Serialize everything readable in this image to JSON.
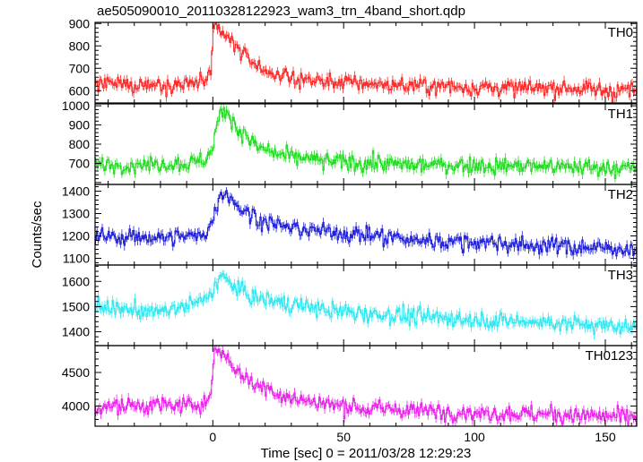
{
  "figure": {
    "title": "ae505090010_20110328122923_wam3_trn_4band_short.qdp",
    "ylabel": "Counts/sec",
    "xlabel": "Time [sec] 0 = 2011/03/28 12:29:23"
  },
  "chart_data": {
    "type": "line",
    "x_range": [
      -45,
      162
    ],
    "x_ticks": [
      0,
      50,
      100,
      150
    ],
    "bin_width_sec": 0.5,
    "panels": [
      {
        "name": "TH0",
        "color": "#ff2a2a",
        "ylim": [
          545,
          905
        ],
        "y_ticks": [
          600,
          700,
          800,
          900
        ],
        "profile": {
          "x": [
            -45,
            -10,
            -3,
            -0.5,
            0,
            1,
            3,
            6,
            10,
            15,
            20,
            30,
            45,
            60,
            80,
            100,
            120,
            140,
            160
          ],
          "y": [
            625,
            630,
            640,
            655,
            860,
            895,
            860,
            830,
            780,
            730,
            690,
            655,
            640,
            630,
            620,
            615,
            610,
            608,
            600
          ]
        }
      },
      {
        "name": "TH1",
        "color": "#22dd22",
        "ylim": [
          590,
          1010
        ],
        "y_ticks": [
          700,
          800,
          900,
          1000
        ],
        "profile": {
          "x": [
            -45,
            -10,
            -3,
            0,
            2,
            4,
            7,
            10,
            15,
            20,
            30,
            45,
            60,
            80,
            100,
            120,
            140,
            160
          ],
          "y": [
            690,
            700,
            720,
            780,
            920,
            985,
            940,
            870,
            810,
            760,
            730,
            710,
            700,
            690,
            690,
            685,
            680,
            675
          ]
        }
      },
      {
        "name": "TH2",
        "color": "#2222dd",
        "ylim": [
          1070,
          1430
        ],
        "y_ticks": [
          1100,
          1200,
          1300,
          1400
        ],
        "profile": {
          "x": [
            -45,
            -10,
            -3,
            0,
            2,
            4,
            7,
            10,
            15,
            20,
            30,
            45,
            60,
            80,
            100,
            120,
            140,
            160
          ],
          "y": [
            1195,
            1195,
            1210,
            1260,
            1360,
            1395,
            1370,
            1330,
            1290,
            1260,
            1235,
            1220,
            1200,
            1180,
            1170,
            1160,
            1150,
            1140
          ]
        }
      },
      {
        "name": "TH3",
        "color": "#33e8f0",
        "ylim": [
          1345,
          1665
        ],
        "y_ticks": [
          1400,
          1500,
          1600
        ],
        "profile": {
          "x": [
            -45,
            -20,
            -10,
            -3,
            0,
            3,
            6,
            10,
            15,
            25,
            40,
            60,
            80,
            100,
            120,
            140,
            160
          ],
          "y": [
            1500,
            1480,
            1500,
            1530,
            1570,
            1620,
            1600,
            1570,
            1540,
            1520,
            1490,
            1470,
            1460,
            1450,
            1440,
            1430,
            1420
          ]
        }
      },
      {
        "name": "TH0123",
        "color": "#ee22ee",
        "ylim": [
          3700,
          4900
        ],
        "y_ticks": [
          4000,
          4500
        ],
        "profile": {
          "x": [
            -45,
            -10,
            -3,
            -0.5,
            0,
            1,
            3,
            6,
            10,
            15,
            20,
            30,
            45,
            60,
            80,
            100,
            120,
            140,
            160
          ],
          "y": [
            4000,
            4010,
            4060,
            4120,
            4650,
            4840,
            4800,
            4700,
            4500,
            4350,
            4250,
            4120,
            4020,
            3960,
            3930,
            3900,
            3880,
            3860,
            3840
          ]
        }
      }
    ]
  }
}
